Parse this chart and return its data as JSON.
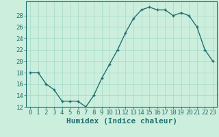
{
  "x": [
    0,
    1,
    2,
    3,
    4,
    5,
    6,
    7,
    8,
    9,
    10,
    11,
    12,
    13,
    14,
    15,
    16,
    17,
    18,
    19,
    20,
    21,
    22,
    23
  ],
  "y": [
    18,
    18,
    16,
    15,
    13,
    13,
    13,
    12,
    14,
    17,
    19.5,
    22,
    25,
    27.5,
    29,
    29.5,
    29,
    29,
    28,
    28.5,
    28,
    26,
    22,
    20
  ],
  "line_color": "#1f7070",
  "marker_color": "#1f7070",
  "bg_color": "#cceedd",
  "grid_color": "#aaddcc",
  "xlabel": "Humidex (Indice chaleur)",
  "ylim": [
    12,
    30
  ],
  "xlim": [
    -0.5,
    23.5
  ],
  "yticks": [
    12,
    14,
    16,
    18,
    20,
    22,
    24,
    26,
    28
  ],
  "xticks": [
    0,
    1,
    2,
    3,
    4,
    5,
    6,
    7,
    8,
    9,
    10,
    11,
    12,
    13,
    14,
    15,
    16,
    17,
    18,
    19,
    20,
    21,
    22,
    23
  ],
  "tick_label_color": "#1f7070",
  "xlabel_color": "#1f7070",
  "xlabel_fontsize": 8,
  "tick_fontsize": 6.5
}
